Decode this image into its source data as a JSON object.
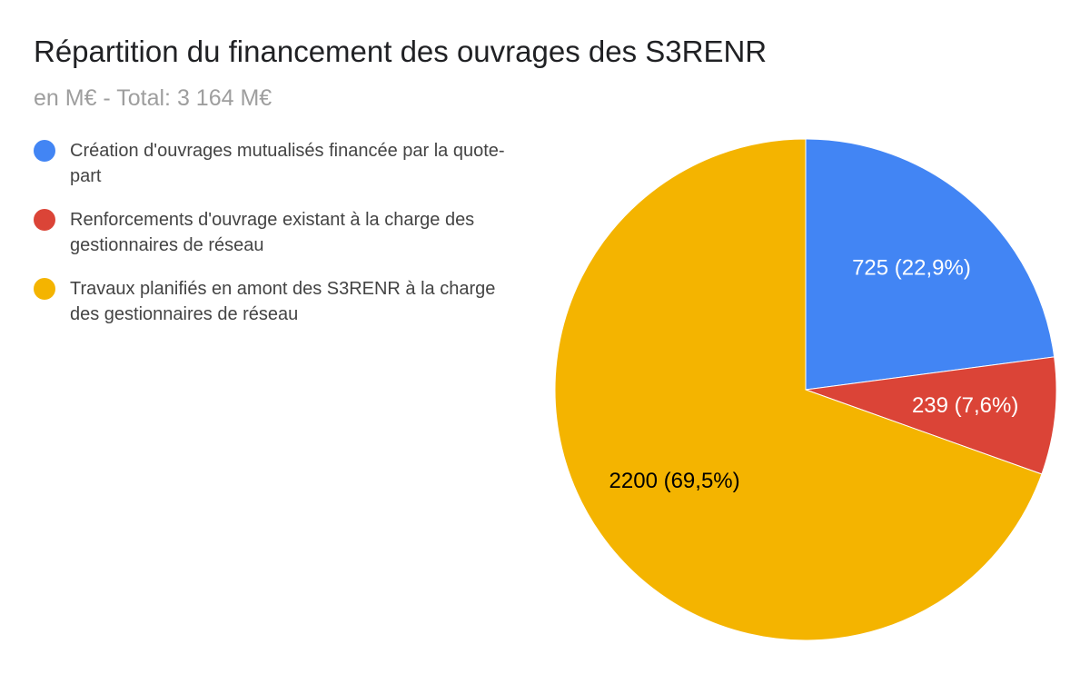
{
  "chart_data": {
    "type": "pie",
    "title": "Répartition du financement des ouvrages des S3RENR",
    "subtitle": "en M€ - Total: 3 164 M€",
    "legend_position": "left",
    "categories": [
      "Création d'ouvrages mutualisés financée par la quote-part",
      "Renforcements d'ouvrage existant à la charge des gestionnaires de réseau",
      "Travaux planifiés en amont des S3RENR à la charge des gestionnaires de réseau"
    ],
    "values": [
      725,
      239,
      2200
    ],
    "data_labels": [
      "725 (22,9%)",
      "239 (7,6%)",
      "2200 (69,5%)"
    ],
    "colors": [
      "#4285f4",
      "#db4437",
      "#f4b400"
    ],
    "label_colors": [
      "#ffffff",
      "#ffffff",
      "#000000"
    ]
  }
}
